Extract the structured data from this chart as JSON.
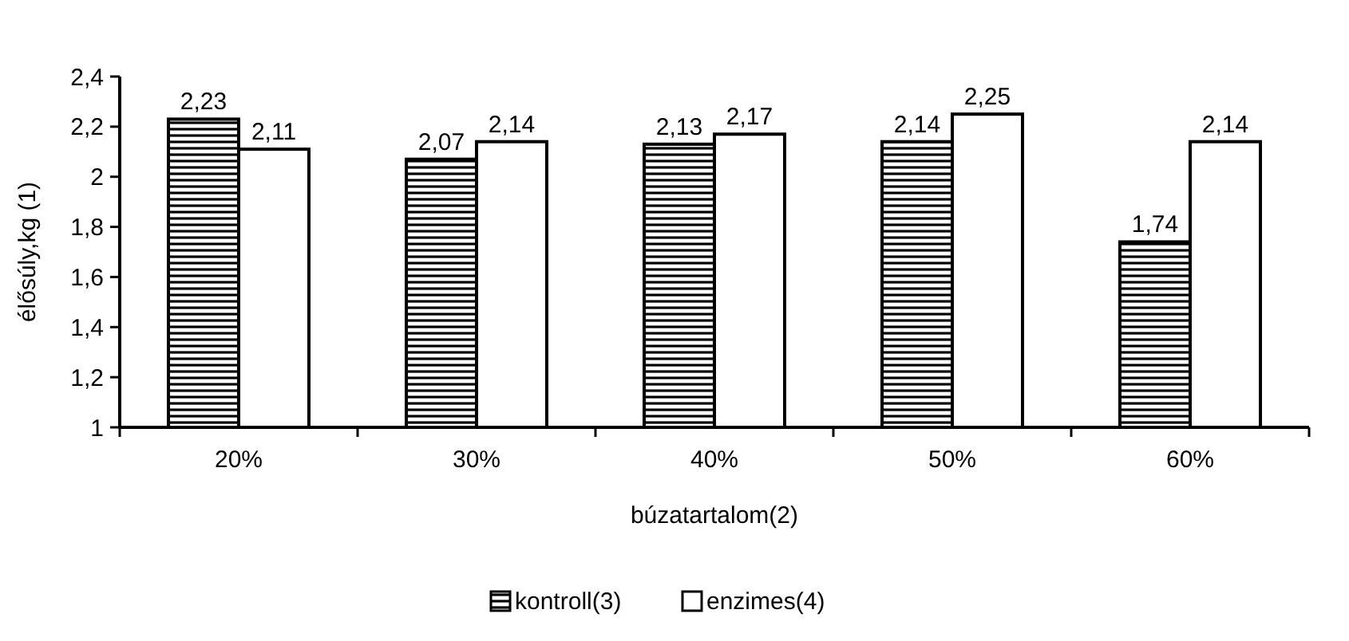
{
  "chart_data": {
    "type": "bar",
    "xlabel": "búzatartalom(2)",
    "ylabel": "élősúly,kg (1)",
    "categories": [
      "20%",
      "30%",
      "40%",
      "50%",
      "60%"
    ],
    "series": [
      {
        "name": "kontroll(3)",
        "color": "#000000",
        "values": [
          2.23,
          2.07,
          2.13,
          2.14,
          1.74
        ],
        "value_labels": [
          "2,23",
          "2,07",
          "2,13",
          "2,14",
          "1,74"
        ]
      },
      {
        "name": "enzimes(4)",
        "color": "#ffffff",
        "values": [
          2.11,
          2.14,
          2.17,
          2.25,
          2.14
        ],
        "value_labels": [
          "2,11",
          "2,14",
          "2,17",
          "2,25",
          "2,14"
        ]
      }
    ],
    "ylim": [
      1,
      2.4
    ],
    "yticks": [
      1,
      {
        "value": 1.2,
        "label": "1,2"
      },
      {
        "value": 1.4,
        "label": "1,4"
      },
      {
        "value": 1.6,
        "label": "1,6"
      },
      {
        "value": 1.8,
        "label": "1,8"
      },
      2,
      {
        "value": 2.2,
        "label": "2,2"
      },
      {
        "value": 2.4,
        "label": "2,4"
      }
    ],
    "grid": false,
    "legend": "bottom"
  }
}
